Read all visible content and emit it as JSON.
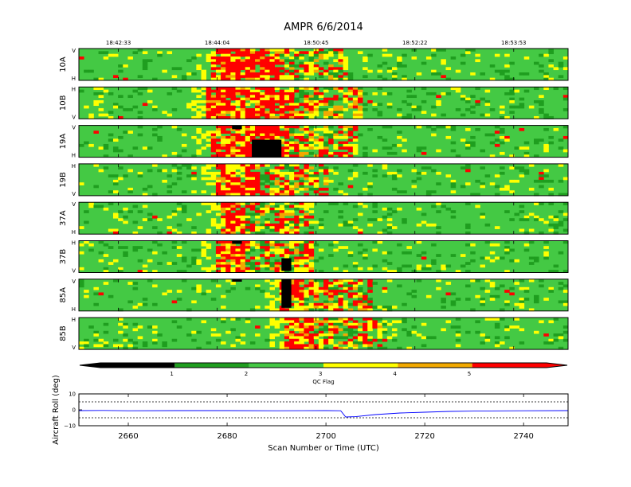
{
  "title": "AMPR 6/6/2014",
  "chart_data": [
    {
      "type": "heatmap",
      "title": "AMPR 6/6/2014",
      "x_range": [
        2650,
        2749
      ],
      "top_time_ticks": [
        {
          "scan": 2658,
          "label": "18:42:33"
        },
        {
          "scan": 2678,
          "label": "18:44:04"
        },
        {
          "scan": 2698,
          "label": "18:50:45"
        },
        {
          "scan": 2718,
          "label": "18:52:22"
        },
        {
          "scan": 2738,
          "label": "18:53:53"
        }
      ],
      "value_scale": "QC Flag 0-5 (0=black, 1-2=dark green, 2-3=light green, 3-4=yellow, 4-5=orange, 5=red)",
      "panels": [
        {
          "name": "10A",
          "top_label": "V",
          "bottom_label": "H",
          "hot_start": 2677,
          "hot_end": 2690,
          "black": []
        },
        {
          "name": "10B",
          "top_label": "H",
          "bottom_label": "V",
          "hot_start": 2676,
          "hot_end": 2693,
          "black": []
        },
        {
          "name": "19A",
          "top_label": "V",
          "bottom_label": "H",
          "hot_start": 2677,
          "hot_end": 2692,
          "black": [
            {
              "x0": 2685,
              "x1": 2690,
              "y0": 0.45,
              "y1": 1.0
            },
            {
              "x0": 2681,
              "x1": 2682,
              "y0": 0.0,
              "y1": 0.12
            }
          ]
        },
        {
          "name": "19B",
          "top_label": "H",
          "bottom_label": "V",
          "hot_start": 2678,
          "hot_end": 2686,
          "black": []
        },
        {
          "name": "37A",
          "top_label": "V",
          "bottom_label": "H",
          "hot_start": 2679,
          "hot_end": 2683,
          "black": []
        },
        {
          "name": "37B",
          "top_label": "H",
          "bottom_label": "V",
          "hot_start": 2678,
          "hot_end": 2683,
          "black": [
            {
              "x0": 2691,
              "x1": 2692,
              "y0": 0.55,
              "y1": 0.95
            },
            {
              "x0": 2681,
              "x1": 2682,
              "y0": 0.0,
              "y1": 0.1
            }
          ]
        },
        {
          "name": "85A",
          "top_label": "V",
          "bottom_label": "H",
          "hot_start": 2691,
          "hot_end": 2695,
          "black": [
            {
              "x0": 2691,
              "x1": 2692,
              "y0": 0.0,
              "y1": 0.9
            },
            {
              "x0": 2681,
              "x1": 2682,
              "y0": 0.0,
              "y1": 0.08
            }
          ]
        },
        {
          "name": "85B",
          "top_label": "H",
          "bottom_label": "V",
          "hot_start": 2692,
          "hot_end": 2697,
          "black": []
        }
      ]
    },
    {
      "type": "colorbar",
      "label": "QC Flag",
      "ticks": [
        1,
        2,
        3,
        4,
        5
      ],
      "range": [
        0,
        6
      ],
      "colors": [
        "#000000",
        "#1f9e1f",
        "#44c944",
        "#ffff00",
        "#f2a900",
        "#ff0000"
      ]
    },
    {
      "type": "line",
      "xlabel": "Scan Number or Time (UTC)",
      "ylabel": "Aircraft Roll (deg)",
      "xlim": [
        2650,
        2749
      ],
      "ylim": [
        -10,
        10
      ],
      "xticks": [
        2660,
        2680,
        2700,
        2720,
        2740
      ],
      "yticks": [
        -10,
        0,
        10
      ],
      "reference_lines": [
        5,
        -5
      ],
      "series": [
        {
          "color": "#0000ff",
          "x": [
            2650,
            2655,
            2660,
            2670,
            2680,
            2690,
            2700,
            2703,
            2704,
            2706,
            2710,
            2715,
            2720,
            2725,
            2730,
            2740,
            2749
          ],
          "y": [
            -0.5,
            -0.4,
            -0.6,
            -0.5,
            -0.5,
            -0.6,
            -0.5,
            -0.6,
            -4.5,
            -4.3,
            -3.0,
            -2.0,
            -1.5,
            -1.0,
            -0.8,
            -0.6,
            -0.5
          ]
        }
      ]
    }
  ]
}
